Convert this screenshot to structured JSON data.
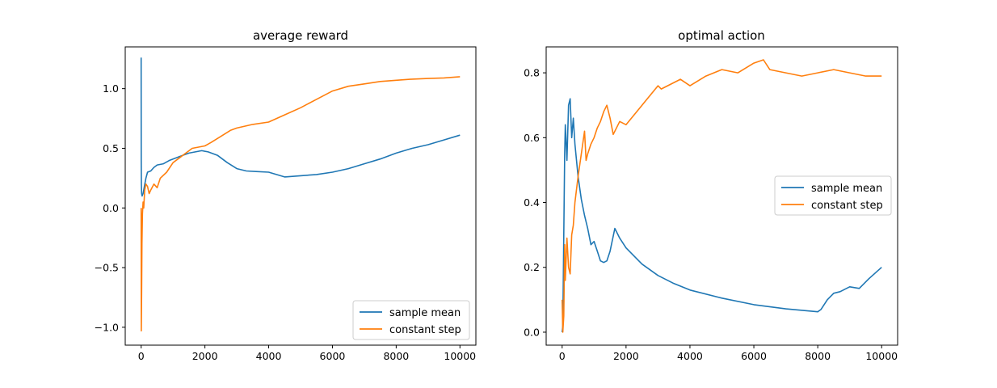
{
  "chart_data": [
    {
      "type": "line",
      "title": "average reward",
      "xlabel": "",
      "ylabel": "",
      "xlim": [
        -500,
        10500
      ],
      "ylim": [
        -1.15,
        1.35
      ],
      "xticks": [
        0,
        2000,
        4000,
        6000,
        8000,
        10000
      ],
      "yticks": [
        -1.0,
        -0.5,
        0.0,
        0.5,
        1.0
      ],
      "xtick_labels": [
        "0",
        "2000",
        "4000",
        "6000",
        "8000",
        "10000"
      ],
      "ytick_labels": [
        "−1.0",
        "−0.5",
        "0.0",
        "0.5",
        "1.0"
      ],
      "grid": false,
      "legend": "lower-right",
      "series": [
        {
          "name": "sample mean",
          "color": "#1f77b4",
          "x": [
            0,
            3,
            8,
            15,
            30,
            60,
            100,
            150,
            200,
            300,
            400,
            500,
            700,
            900,
            1100,
            1300,
            1500,
            1700,
            1900,
            2100,
            2400,
            2700,
            3000,
            3300,
            3600,
            4000,
            4500,
            5000,
            5500,
            6000,
            6500,
            7000,
            7500,
            8000,
            8500,
            9000,
            9500,
            10000
          ],
          "y": [
            1.26,
            0.4,
            0.2,
            0.12,
            0.1,
            0.12,
            0.18,
            0.25,
            0.3,
            0.31,
            0.34,
            0.36,
            0.37,
            0.4,
            0.42,
            0.44,
            0.46,
            0.47,
            0.48,
            0.47,
            0.44,
            0.38,
            0.33,
            0.31,
            0.305,
            0.3,
            0.26,
            0.27,
            0.28,
            0.3,
            0.33,
            0.37,
            0.41,
            0.46,
            0.5,
            0.53,
            0.57,
            0.61
          ]
        },
        {
          "name": "constant step",
          "color": "#ff7f0e",
          "x": [
            0,
            5,
            15,
            25,
            40,
            60,
            80,
            110,
            150,
            200,
            250,
            300,
            400,
            500,
            600,
            800,
            1000,
            1200,
            1400,
            1600,
            1800,
            2000,
            2200,
            2500,
            2800,
            3000,
            3500,
            4000,
            4500,
            5000,
            5500,
            6000,
            6500,
            7000,
            7500,
            8000,
            8500,
            9000,
            9500,
            10000
          ],
          "y": [
            0.0,
            -1.03,
            -0.7,
            -0.3,
            -0.05,
            0.05,
            0.0,
            0.15,
            0.2,
            0.18,
            0.12,
            0.15,
            0.2,
            0.17,
            0.25,
            0.3,
            0.38,
            0.42,
            0.46,
            0.5,
            0.51,
            0.52,
            0.55,
            0.6,
            0.65,
            0.67,
            0.7,
            0.72,
            0.78,
            0.84,
            0.91,
            0.98,
            1.02,
            1.04,
            1.06,
            1.07,
            1.08,
            1.085,
            1.09,
            1.1
          ]
        }
      ]
    },
    {
      "type": "line",
      "title": "optimal action",
      "xlabel": "",
      "ylabel": "",
      "xlim": [
        -500,
        10500
      ],
      "ylim": [
        -0.04,
        0.88
      ],
      "xticks": [
        0,
        2000,
        4000,
        6000,
        8000,
        10000
      ],
      "yticks": [
        0.0,
        0.2,
        0.4,
        0.6,
        0.8
      ],
      "xtick_labels": [
        "0",
        "2000",
        "4000",
        "6000",
        "8000",
        "10000"
      ],
      "ytick_labels": [
        "0.0",
        "0.2",
        "0.4",
        "0.6",
        "0.8"
      ],
      "grid": false,
      "legend": "center-right",
      "series": [
        {
          "name": "sample mean",
          "color": "#1f77b4",
          "x": [
            0,
            20,
            50,
            80,
            100,
            150,
            200,
            250,
            300,
            350,
            400,
            500,
            600,
            700,
            800,
            900,
            1000,
            1100,
            1200,
            1300,
            1400,
            1500,
            1650,
            1800,
            2000,
            2500,
            3000,
            3500,
            4000,
            5000,
            6000,
            7000,
            8000,
            8100,
            8300,
            8500,
            8700,
            9000,
            9300,
            9600,
            10000
          ],
          "y": [
            0.0,
            0.02,
            0.3,
            0.55,
            0.64,
            0.53,
            0.7,
            0.72,
            0.6,
            0.66,
            0.58,
            0.48,
            0.41,
            0.36,
            0.32,
            0.27,
            0.28,
            0.25,
            0.22,
            0.215,
            0.22,
            0.25,
            0.32,
            0.29,
            0.26,
            0.21,
            0.175,
            0.15,
            0.13,
            0.105,
            0.085,
            0.072,
            0.063,
            0.07,
            0.1,
            0.12,
            0.125,
            0.14,
            0.135,
            0.165,
            0.2
          ]
        },
        {
          "name": "constant step",
          "color": "#ff7f0e",
          "x": [
            0,
            20,
            50,
            80,
            100,
            150,
            200,
            250,
            300,
            350,
            400,
            500,
            600,
            700,
            750,
            800,
            900,
            1000,
            1100,
            1200,
            1300,
            1400,
            1500,
            1600,
            1700,
            1800,
            2000,
            2500,
            3000,
            3100,
            3500,
            3700,
            4000,
            4500,
            5000,
            5500,
            6000,
            6300,
            6500,
            7000,
            7500,
            8000,
            8500,
            9000,
            9500,
            10000
          ],
          "y": [
            0.1,
            0.0,
            0.05,
            0.27,
            0.16,
            0.29,
            0.2,
            0.18,
            0.3,
            0.33,
            0.4,
            0.48,
            0.55,
            0.62,
            0.53,
            0.55,
            0.58,
            0.6,
            0.63,
            0.65,
            0.68,
            0.7,
            0.66,
            0.61,
            0.63,
            0.65,
            0.64,
            0.7,
            0.76,
            0.75,
            0.77,
            0.78,
            0.76,
            0.79,
            0.81,
            0.8,
            0.83,
            0.84,
            0.81,
            0.8,
            0.79,
            0.8,
            0.81,
            0.8,
            0.79,
            0.79
          ]
        }
      ]
    }
  ]
}
